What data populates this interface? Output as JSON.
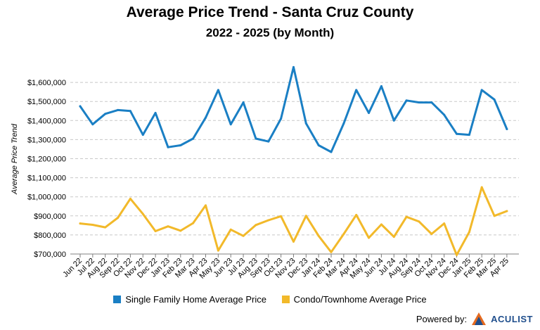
{
  "chart_data": {
    "type": "line",
    "title": "Average Price Trend - Santa Cruz County",
    "subtitle": "2022 - 2025 (by Month)",
    "ylabel": "Average Price Trend",
    "xlabel": "",
    "ylim": [
      700000,
      1700000
    ],
    "yticks": [
      "$700,000",
      "$800,000",
      "$900,000",
      "$1,000,000",
      "$1,100,000",
      "$1,200,000",
      "$1,300,000",
      "$1,400,000",
      "$1,500,000",
      "$1,600,000"
    ],
    "grid": true,
    "legend_position": "bottom",
    "categories": [
      "Jun 22",
      "Jul 22",
      "Aug 22",
      "Sep 22",
      "Oct 22",
      "Nov 22",
      "Dec 22",
      "Jan 23",
      "Feb 23",
      "Mar 23",
      "Apr 23",
      "May 23",
      "Jun 23",
      "Jul 23",
      "Aug 23",
      "Sep 23",
      "Oct 23",
      "Nov 23",
      "Dec 23",
      "Jan 24",
      "Feb 24",
      "Mar 24",
      "Apr 24",
      "May 24",
      "Jun 24",
      "Jul 24",
      "Aug 24",
      "Sep 24",
      "Oct 24",
      "Nov 24",
      "Dec 24",
      "Jan 25",
      "Feb 25",
      "Mar 25",
      "Apr 25"
    ],
    "series": [
      {
        "name": "Single Family Home Average Price",
        "color": "#1a7fc4",
        "values": [
          1475000,
          1380000,
          1435000,
          1455000,
          1450000,
          1325000,
          1440000,
          1260000,
          1270000,
          1305000,
          1415000,
          1560000,
          1380000,
          1495000,
          1305000,
          1290000,
          1410000,
          1680000,
          1385000,
          1270000,
          1235000,
          1385000,
          1560000,
          1440000,
          1580000,
          1400000,
          1505000,
          1495000,
          1495000,
          1430000,
          1330000,
          1325000,
          1560000,
          1510000,
          1355000
        ]
      },
      {
        "name": "Condo/Townhome Average Price",
        "color": "#f2b92a",
        "values": [
          860000,
          853000,
          840000,
          890000,
          990000,
          910000,
          820000,
          845000,
          822000,
          862000,
          955000,
          718000,
          828000,
          795000,
          852000,
          877000,
          898000,
          765000,
          900000,
          795000,
          710000,
          805000,
          905000,
          785000,
          855000,
          790000,
          895000,
          870000,
          805000,
          860000,
          695000,
          815000,
          1050000,
          900000,
          925000
        ]
      }
    ]
  },
  "footer": {
    "powered_by": "Powered by:",
    "logo_text": "ACULIST"
  },
  "icons": {
    "logo": "aculist-logo-icon"
  }
}
